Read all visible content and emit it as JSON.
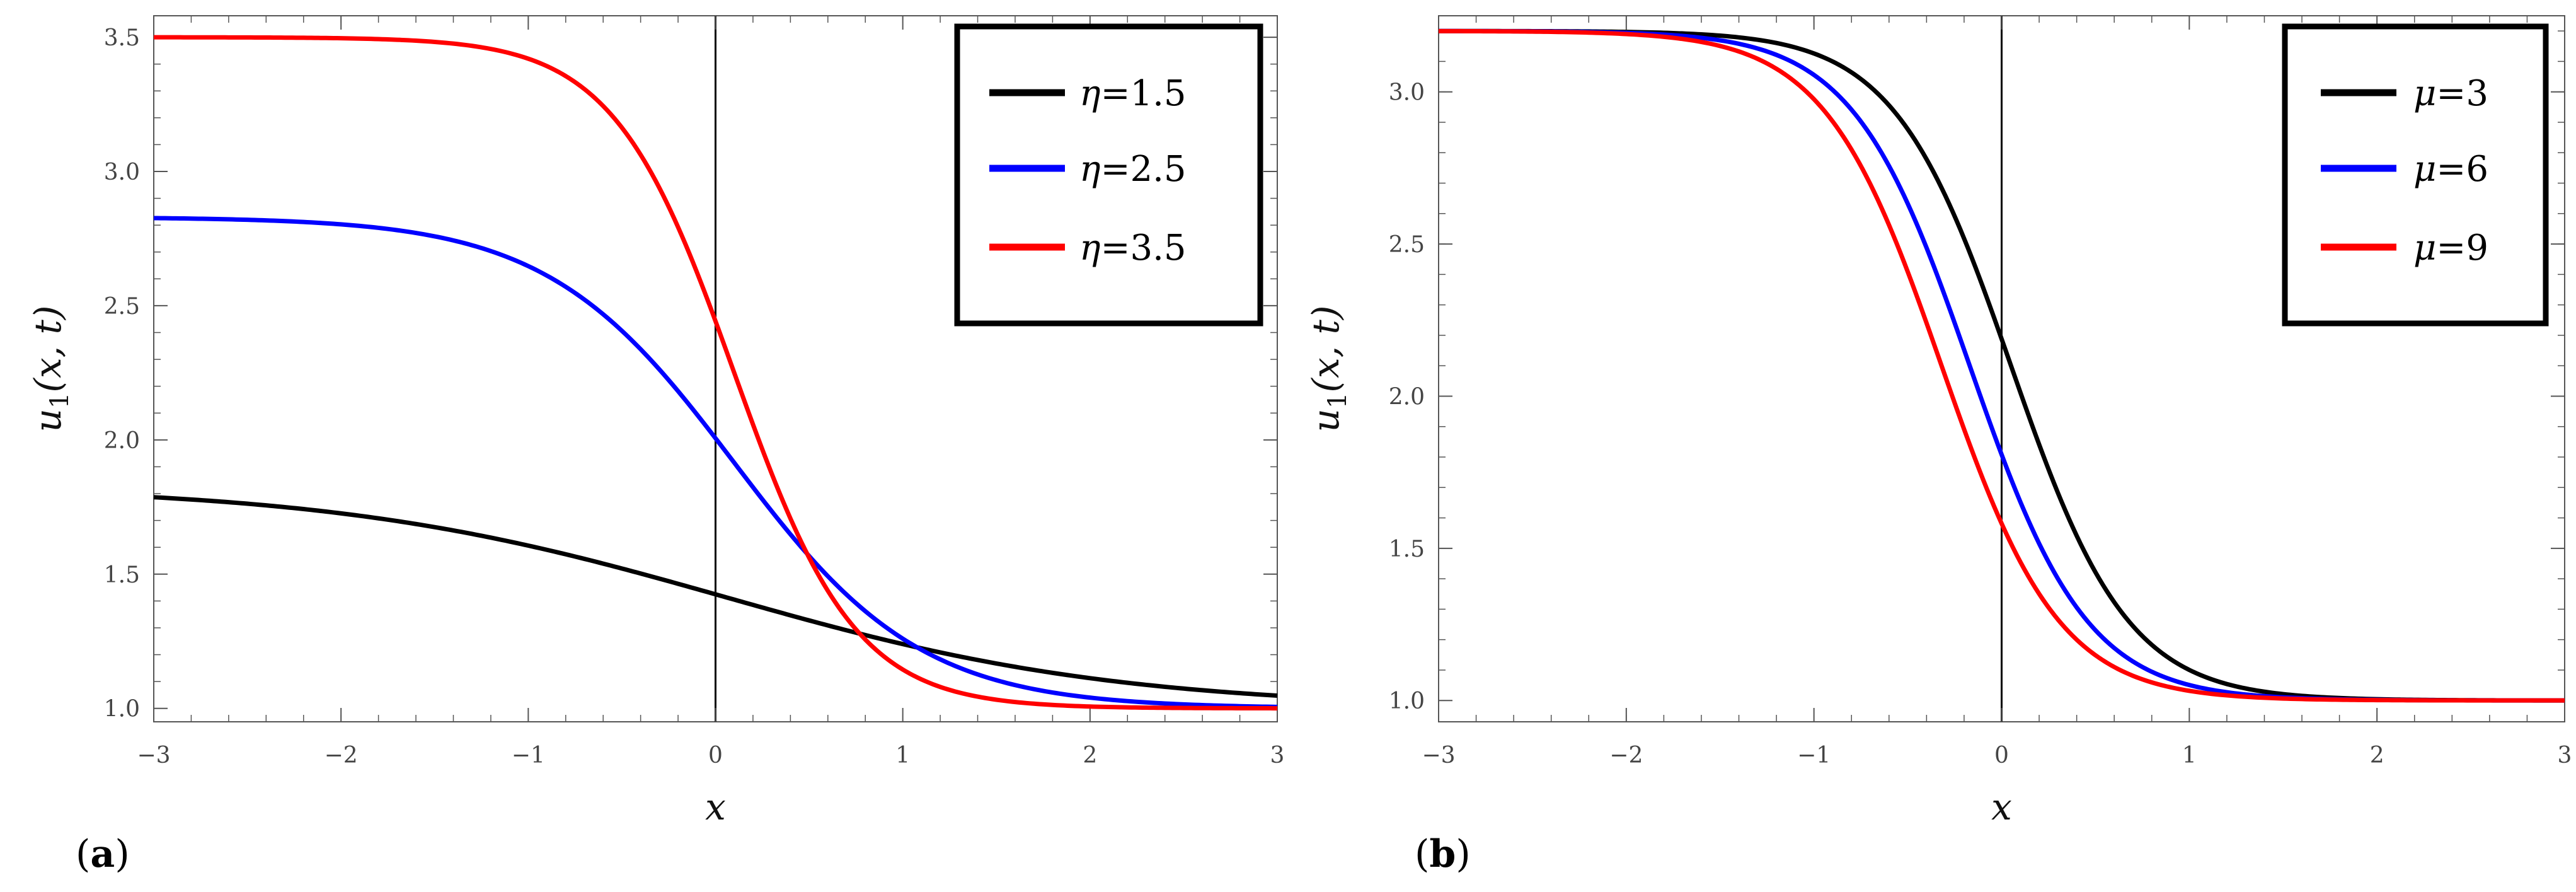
{
  "chart_data": [
    {
      "panel_label": "a",
      "type": "line",
      "xlabel": "x",
      "ylabel": "u1(x,t)",
      "ylabel_base": "u",
      "ylabel_sub": "1",
      "ylabel_args": "(x, t)",
      "xlim": [
        -3,
        3
      ],
      "ylim": [
        0.95,
        3.58
      ],
      "xticks": [
        -3,
        -2,
        -1,
        0,
        1,
        2,
        3
      ],
      "xtick_labels": [
        "−3",
        "−2",
        "−1",
        "0",
        "1",
        "2",
        "3"
      ],
      "yticks": [
        1.0,
        1.5,
        2.0,
        2.5,
        3.0,
        3.5
      ],
      "ytick_labels": [
        "1.0",
        "1.5",
        "2.0",
        "2.5",
        "3.0",
        "3.5"
      ],
      "legend_position": "top-right",
      "series": [
        {
          "name": "η=1.5",
          "symbol": "η",
          "value": "1.5",
          "color": "#000000",
          "low": 1.0,
          "high": 1.83,
          "k": 0.95,
          "x0": 0.05
        },
        {
          "name": "η=2.5",
          "symbol": "η",
          "value": "2.5",
          "color": "#0000ff",
          "low": 1.0,
          "high": 2.83,
          "k": 2.0,
          "x0": 0.1
        },
        {
          "name": "η=3.5",
          "symbol": "η",
          "value": "3.5",
          "color": "#ff0000",
          "low": 1.0,
          "high": 3.5,
          "k": 3.1,
          "x0": 0.1
        }
      ]
    },
    {
      "panel_label": "b",
      "type": "line",
      "xlabel": "x",
      "ylabel": "u1(x,t)",
      "ylabel_base": "u",
      "ylabel_sub": "1",
      "ylabel_args": "(x, t)",
      "xlim": [
        -3,
        3
      ],
      "ylim": [
        0.93,
        3.25
      ],
      "xticks": [
        -3,
        -2,
        -1,
        0,
        1,
        2,
        3
      ],
      "xtick_labels": [
        "−3",
        "−2",
        "−1",
        "0",
        "1",
        "2",
        "3"
      ],
      "yticks": [
        1.0,
        1.5,
        2.0,
        2.5,
        3.0
      ],
      "ytick_labels": [
        "1.0",
        "1.5",
        "2.0",
        "2.5",
        "3.0"
      ],
      "legend_position": "top-right",
      "series": [
        {
          "name": "μ=3",
          "symbol": "μ",
          "value": "3",
          "color": "#000000",
          "low": 1.0,
          "high": 3.2,
          "k": 3.2,
          "x0": 0.05
        },
        {
          "name": "μ=6",
          "symbol": "μ",
          "value": "6",
          "color": "#0000ff",
          "low": 1.0,
          "high": 3.2,
          "k": 3.2,
          "x0": -0.17
        },
        {
          "name": "μ=9",
          "symbol": "μ",
          "value": "9",
          "color": "#ff0000",
          "low": 1.0,
          "high": 3.2,
          "k": 3.2,
          "x0": -0.32
        }
      ]
    }
  ]
}
